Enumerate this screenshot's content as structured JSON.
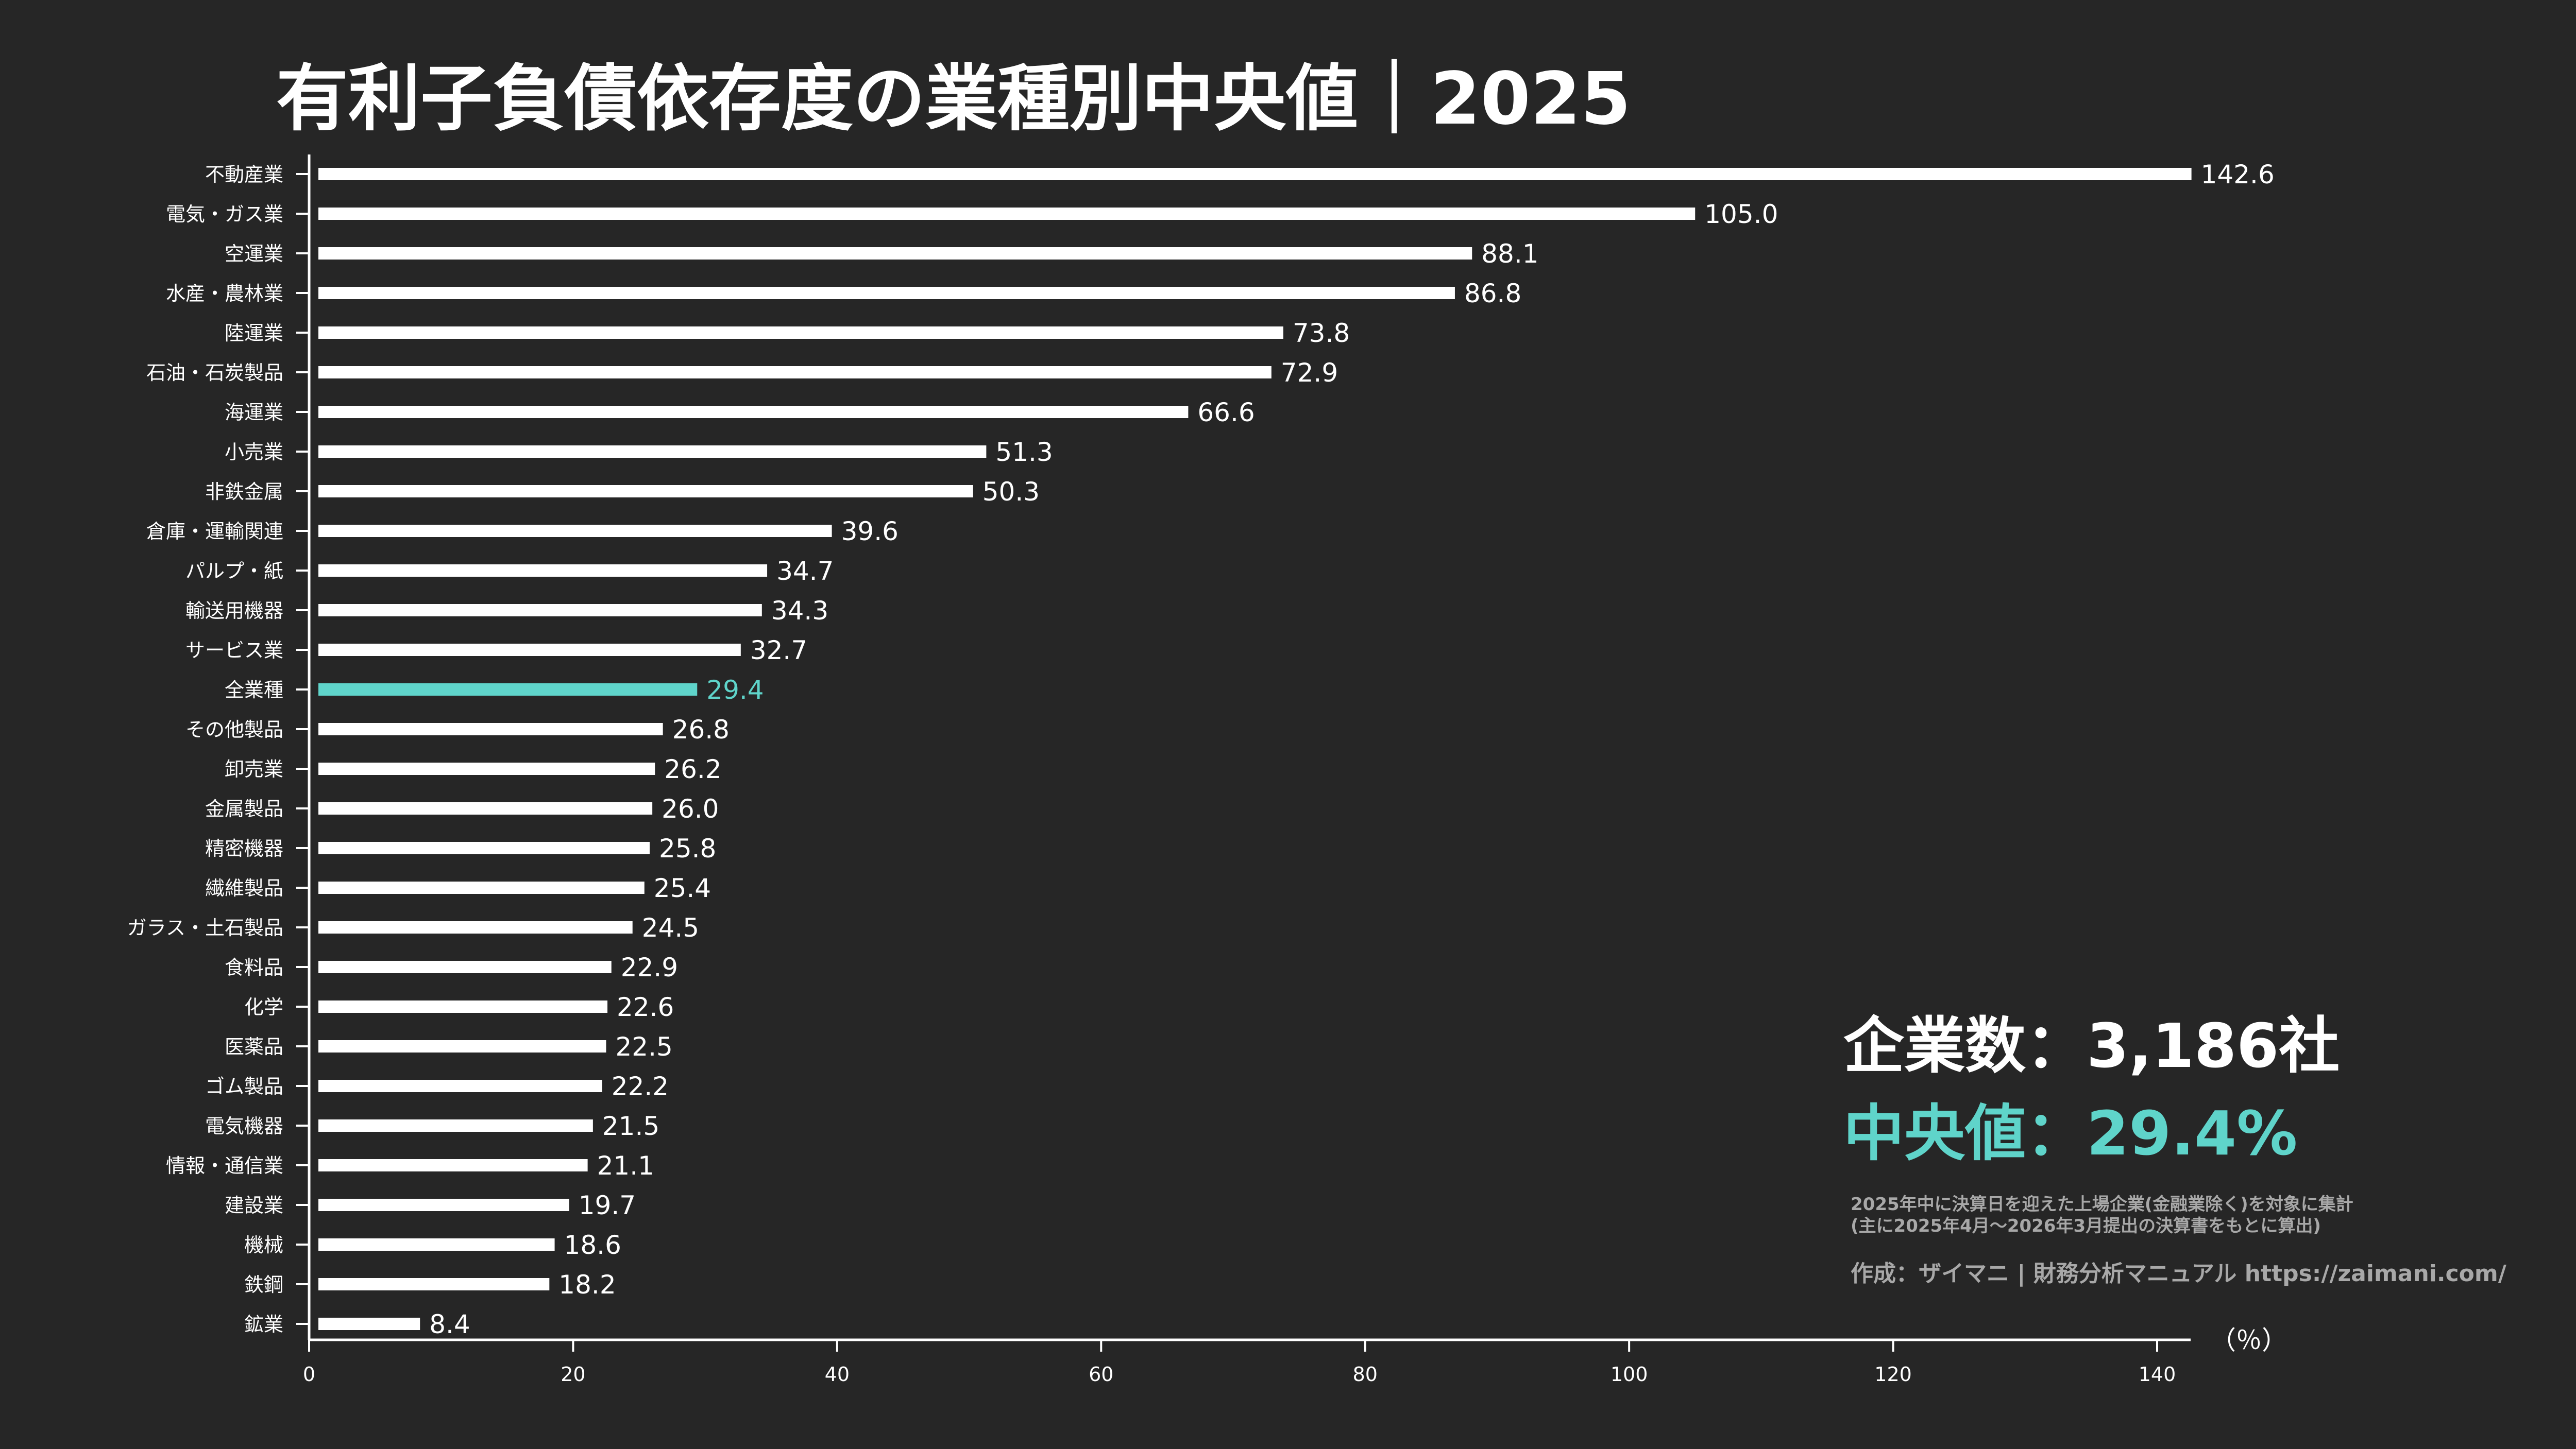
{
  "colors": {
    "background": "#262626",
    "bar": "#ffffff",
    "highlight": "#5fd4ca",
    "text": "#ffffff",
    "note": "#a8a8a8"
  },
  "chart_data": {
    "type": "bar",
    "orientation": "horizontal",
    "title": "有利子負債依存度の業種別中央値｜2025",
    "xlabel": "（％）",
    "xlim": [
      0,
      142
    ],
    "xticks": [
      0,
      20,
      40,
      60,
      80,
      100,
      120,
      140
    ],
    "grid": false,
    "highlight_category": "全業種",
    "categories": [
      "不動産業",
      "電気・ガス業",
      "空運業",
      "水産・農林業",
      "陸運業",
      "石油・石炭製品",
      "海運業",
      "小売業",
      "非鉄金属",
      "倉庫・運輸関連",
      "パルプ・紙",
      "輸送用機器",
      "サービス業",
      "全業種",
      "その他製品",
      "卸売業",
      "金属製品",
      "精密機器",
      "繊維製品",
      "ガラス・土石製品",
      "食料品",
      "化学",
      "医薬品",
      "ゴム製品",
      "電気機器",
      "情報・通信業",
      "建設業",
      "機械",
      "鉄鋼",
      "鉱業"
    ],
    "values": [
      142.6,
      105.0,
      88.1,
      86.8,
      73.8,
      72.9,
      66.6,
      51.3,
      50.3,
      39.6,
      34.7,
      34.3,
      32.7,
      29.4,
      26.8,
      26.2,
      26.0,
      25.8,
      25.4,
      24.5,
      22.9,
      22.6,
      22.5,
      22.2,
      21.5,
      21.1,
      19.7,
      18.6,
      18.2,
      8.4
    ],
    "value_labels": [
      "142.6",
      "105.0",
      "88.1",
      "86.8",
      "73.8",
      "72.9",
      "66.6",
      "51.3",
      "50.3",
      "39.6",
      "34.7",
      "34.3",
      "32.7",
      "29.4",
      "26.8",
      "26.2",
      "26.0",
      "25.8",
      "25.4",
      "24.5",
      "22.9",
      "22.6",
      "22.5",
      "22.2",
      "21.5",
      "21.1",
      "19.7",
      "18.6",
      "18.2",
      "8.4"
    ]
  },
  "stats": {
    "company_count": "企業数：3,186社",
    "median": "中央値：29.4%"
  },
  "notes": {
    "line1": "2025年中に決算日を迎えた上場企業(金融業除く)を対象に集計",
    "line2": "(主に2025年4月〜2026年3月提出の決算書をもとに算出)",
    "credit": "作成：ザイマニ | 財務分析マニュアル https://zaimani.com/"
  }
}
